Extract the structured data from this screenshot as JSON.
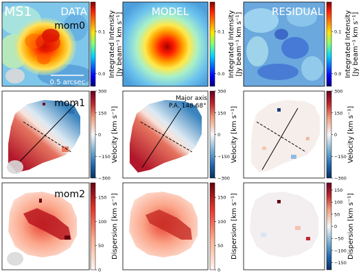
{
  "chart_data": {
    "type": "heatmap",
    "columns": [
      "DATA",
      "MODEL",
      "RESIDUAL"
    ],
    "source_label": "MS1",
    "rows": [
      {
        "label": "mom0",
        "colorbar": {
          "ticks": [
            "0.0",
            "0.1"
          ],
          "label_line1": "Integrated Intensity",
          "label_line2": "[Jy beam⁻¹ km s⁻¹]",
          "colormap": "jet",
          "range": [
            -0.03,
            0.17
          ]
        },
        "scale_bar": "0.5 arcsec"
      },
      {
        "label": "mom1",
        "colorbar": {
          "ticks": [
            "300",
            "150",
            "0",
            "−150",
            "−300"
          ],
          "label": "Velocity [km s⁻¹]",
          "colormap": "RdBu",
          "range": [
            -300,
            300
          ]
        },
        "annotation_line1": "Major axis",
        "annotation_line2": "P.A. 148.68°"
      },
      {
        "label": "mom2",
        "colorbar_main": {
          "ticks": [
            "150",
            "100",
            "50",
            "0"
          ],
          "label": "Dispersion [km s⁻¹]",
          "colormap": "Reds",
          "range": [
            0,
            180
          ]
        },
        "colorbar_residual": {
          "ticks": [
            "150",
            "100",
            "50",
            "0",
            "−50",
            "−100",
            "−150"
          ],
          "label": "Dispersion [km s⁻¹]",
          "colormap": "RdBu",
          "range": [
            -180,
            180
          ]
        }
      }
    ]
  }
}
